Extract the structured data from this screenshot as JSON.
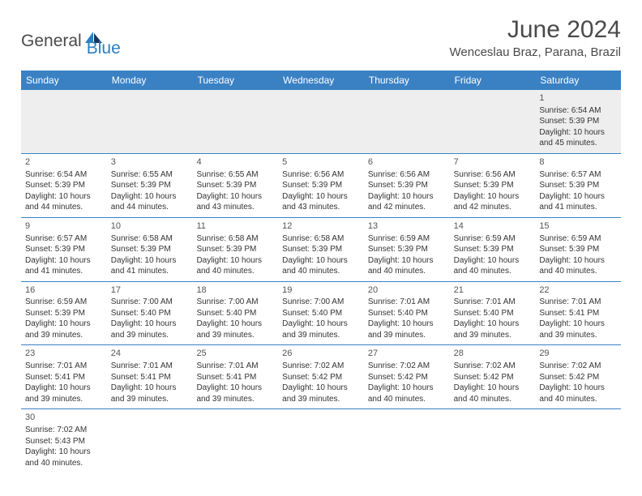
{
  "brand": {
    "part1": "General",
    "part2": "Blue",
    "logo_color": "#2a7fbf"
  },
  "title": "June 2024",
  "location": "Wenceslau Braz, Parana, Brazil",
  "colors": {
    "header_bg": "#3a81c4",
    "header_text": "#ffffff",
    "border": "#3a81c4",
    "first_week_bg": "#eeeeee",
    "text": "#333333"
  },
  "day_names": [
    "Sunday",
    "Monday",
    "Tuesday",
    "Wednesday",
    "Thursday",
    "Friday",
    "Saturday"
  ],
  "weeks": [
    [
      null,
      null,
      null,
      null,
      null,
      null,
      {
        "d": "1",
        "sr": "Sunrise: 6:54 AM",
        "ss": "Sunset: 5:39 PM",
        "dl1": "Daylight: 10 hours",
        "dl2": "and 45 minutes."
      }
    ],
    [
      {
        "d": "2",
        "sr": "Sunrise: 6:54 AM",
        "ss": "Sunset: 5:39 PM",
        "dl1": "Daylight: 10 hours",
        "dl2": "and 44 minutes."
      },
      {
        "d": "3",
        "sr": "Sunrise: 6:55 AM",
        "ss": "Sunset: 5:39 PM",
        "dl1": "Daylight: 10 hours",
        "dl2": "and 44 minutes."
      },
      {
        "d": "4",
        "sr": "Sunrise: 6:55 AM",
        "ss": "Sunset: 5:39 PM",
        "dl1": "Daylight: 10 hours",
        "dl2": "and 43 minutes."
      },
      {
        "d": "5",
        "sr": "Sunrise: 6:56 AM",
        "ss": "Sunset: 5:39 PM",
        "dl1": "Daylight: 10 hours",
        "dl2": "and 43 minutes."
      },
      {
        "d": "6",
        "sr": "Sunrise: 6:56 AM",
        "ss": "Sunset: 5:39 PM",
        "dl1": "Daylight: 10 hours",
        "dl2": "and 42 minutes."
      },
      {
        "d": "7",
        "sr": "Sunrise: 6:56 AM",
        "ss": "Sunset: 5:39 PM",
        "dl1": "Daylight: 10 hours",
        "dl2": "and 42 minutes."
      },
      {
        "d": "8",
        "sr": "Sunrise: 6:57 AM",
        "ss": "Sunset: 5:39 PM",
        "dl1": "Daylight: 10 hours",
        "dl2": "and 41 minutes."
      }
    ],
    [
      {
        "d": "9",
        "sr": "Sunrise: 6:57 AM",
        "ss": "Sunset: 5:39 PM",
        "dl1": "Daylight: 10 hours",
        "dl2": "and 41 minutes."
      },
      {
        "d": "10",
        "sr": "Sunrise: 6:58 AM",
        "ss": "Sunset: 5:39 PM",
        "dl1": "Daylight: 10 hours",
        "dl2": "and 41 minutes."
      },
      {
        "d": "11",
        "sr": "Sunrise: 6:58 AM",
        "ss": "Sunset: 5:39 PM",
        "dl1": "Daylight: 10 hours",
        "dl2": "and 40 minutes."
      },
      {
        "d": "12",
        "sr": "Sunrise: 6:58 AM",
        "ss": "Sunset: 5:39 PM",
        "dl1": "Daylight: 10 hours",
        "dl2": "and 40 minutes."
      },
      {
        "d": "13",
        "sr": "Sunrise: 6:59 AM",
        "ss": "Sunset: 5:39 PM",
        "dl1": "Daylight: 10 hours",
        "dl2": "and 40 minutes."
      },
      {
        "d": "14",
        "sr": "Sunrise: 6:59 AM",
        "ss": "Sunset: 5:39 PM",
        "dl1": "Daylight: 10 hours",
        "dl2": "and 40 minutes."
      },
      {
        "d": "15",
        "sr": "Sunrise: 6:59 AM",
        "ss": "Sunset: 5:39 PM",
        "dl1": "Daylight: 10 hours",
        "dl2": "and 40 minutes."
      }
    ],
    [
      {
        "d": "16",
        "sr": "Sunrise: 6:59 AM",
        "ss": "Sunset: 5:39 PM",
        "dl1": "Daylight: 10 hours",
        "dl2": "and 39 minutes."
      },
      {
        "d": "17",
        "sr": "Sunrise: 7:00 AM",
        "ss": "Sunset: 5:40 PM",
        "dl1": "Daylight: 10 hours",
        "dl2": "and 39 minutes."
      },
      {
        "d": "18",
        "sr": "Sunrise: 7:00 AM",
        "ss": "Sunset: 5:40 PM",
        "dl1": "Daylight: 10 hours",
        "dl2": "and 39 minutes."
      },
      {
        "d": "19",
        "sr": "Sunrise: 7:00 AM",
        "ss": "Sunset: 5:40 PM",
        "dl1": "Daylight: 10 hours",
        "dl2": "and 39 minutes."
      },
      {
        "d": "20",
        "sr": "Sunrise: 7:01 AM",
        "ss": "Sunset: 5:40 PM",
        "dl1": "Daylight: 10 hours",
        "dl2": "and 39 minutes."
      },
      {
        "d": "21",
        "sr": "Sunrise: 7:01 AM",
        "ss": "Sunset: 5:40 PM",
        "dl1": "Daylight: 10 hours",
        "dl2": "and 39 minutes."
      },
      {
        "d": "22",
        "sr": "Sunrise: 7:01 AM",
        "ss": "Sunset: 5:41 PM",
        "dl1": "Daylight: 10 hours",
        "dl2": "and 39 minutes."
      }
    ],
    [
      {
        "d": "23",
        "sr": "Sunrise: 7:01 AM",
        "ss": "Sunset: 5:41 PM",
        "dl1": "Daylight: 10 hours",
        "dl2": "and 39 minutes."
      },
      {
        "d": "24",
        "sr": "Sunrise: 7:01 AM",
        "ss": "Sunset: 5:41 PM",
        "dl1": "Daylight: 10 hours",
        "dl2": "and 39 minutes."
      },
      {
        "d": "25",
        "sr": "Sunrise: 7:01 AM",
        "ss": "Sunset: 5:41 PM",
        "dl1": "Daylight: 10 hours",
        "dl2": "and 39 minutes."
      },
      {
        "d": "26",
        "sr": "Sunrise: 7:02 AM",
        "ss": "Sunset: 5:42 PM",
        "dl1": "Daylight: 10 hours",
        "dl2": "and 39 minutes."
      },
      {
        "d": "27",
        "sr": "Sunrise: 7:02 AM",
        "ss": "Sunset: 5:42 PM",
        "dl1": "Daylight: 10 hours",
        "dl2": "and 40 minutes."
      },
      {
        "d": "28",
        "sr": "Sunrise: 7:02 AM",
        "ss": "Sunset: 5:42 PM",
        "dl1": "Daylight: 10 hours",
        "dl2": "and 40 minutes."
      },
      {
        "d": "29",
        "sr": "Sunrise: 7:02 AM",
        "ss": "Sunset: 5:42 PM",
        "dl1": "Daylight: 10 hours",
        "dl2": "and 40 minutes."
      }
    ],
    [
      {
        "d": "30",
        "sr": "Sunrise: 7:02 AM",
        "ss": "Sunset: 5:43 PM",
        "dl1": "Daylight: 10 hours",
        "dl2": "and 40 minutes."
      },
      null,
      null,
      null,
      null,
      null,
      null
    ]
  ]
}
